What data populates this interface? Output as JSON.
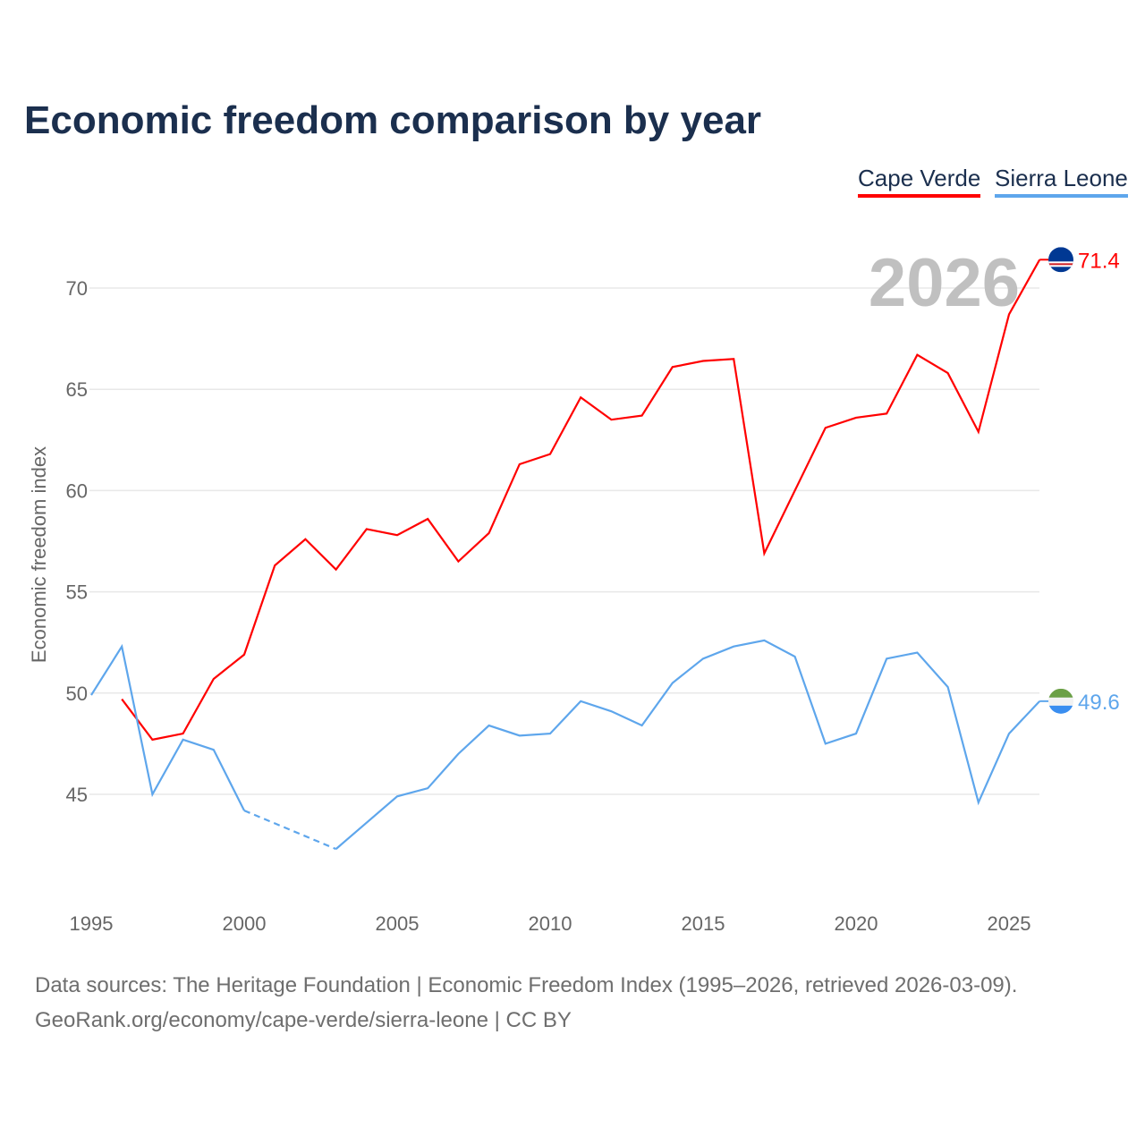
{
  "chart_data": {
    "type": "line",
    "title": "Economic freedom comparison by year",
    "xlabel": "",
    "ylabel": "Economic freedom index",
    "xlim": [
      1995,
      2026
    ],
    "ylim": [
      41,
      73
    ],
    "grid": true,
    "x_ticks": [
      1995,
      2000,
      2005,
      2010,
      2015,
      2020,
      2025
    ],
    "y_ticks": [
      45,
      50,
      55,
      60,
      65,
      70
    ],
    "year_watermark": "2026",
    "legend_position": "top-right",
    "x": [
      1995,
      1996,
      1997,
      1998,
      1999,
      2000,
      2001,
      2002,
      2003,
      2004,
      2005,
      2006,
      2007,
      2008,
      2009,
      2010,
      2011,
      2012,
      2013,
      2014,
      2015,
      2016,
      2017,
      2018,
      2019,
      2020,
      2021,
      2022,
      2023,
      2024,
      2025,
      2026
    ],
    "series": [
      {
        "name": "Cape Verde",
        "color": "#ff0000",
        "end_label": "71.4",
        "values": [
          null,
          49.7,
          47.7,
          48.0,
          50.7,
          51.9,
          56.3,
          57.6,
          56.1,
          58.1,
          57.8,
          58.6,
          56.5,
          57.9,
          61.3,
          61.8,
          64.6,
          63.5,
          63.7,
          66.1,
          66.4,
          66.5,
          56.9,
          60.0,
          63.1,
          63.6,
          63.8,
          66.7,
          65.8,
          62.9,
          68.7,
          71.4
        ]
      },
      {
        "name": "Sierra Leone",
        "color": "#5ea6ec",
        "end_label": "49.6",
        "values": [
          49.9,
          52.3,
          45.0,
          47.7,
          47.2,
          44.2,
          null,
          null,
          42.3,
          43.6,
          44.9,
          45.3,
          47.0,
          48.4,
          47.9,
          48.0,
          49.6,
          49.1,
          48.4,
          50.5,
          51.7,
          52.3,
          52.6,
          51.8,
          47.5,
          48.0,
          51.7,
          52.0,
          50.3,
          44.6,
          48.0,
          49.6
        ]
      }
    ]
  },
  "footer": {
    "line1": "Data sources: The Heritage Foundation | Economic Freedom Index (1995–2026, retrieved 2026-03-09).",
    "line2": "GeoRank.org/economy/cape-verde/sierra-leone | CC BY"
  }
}
